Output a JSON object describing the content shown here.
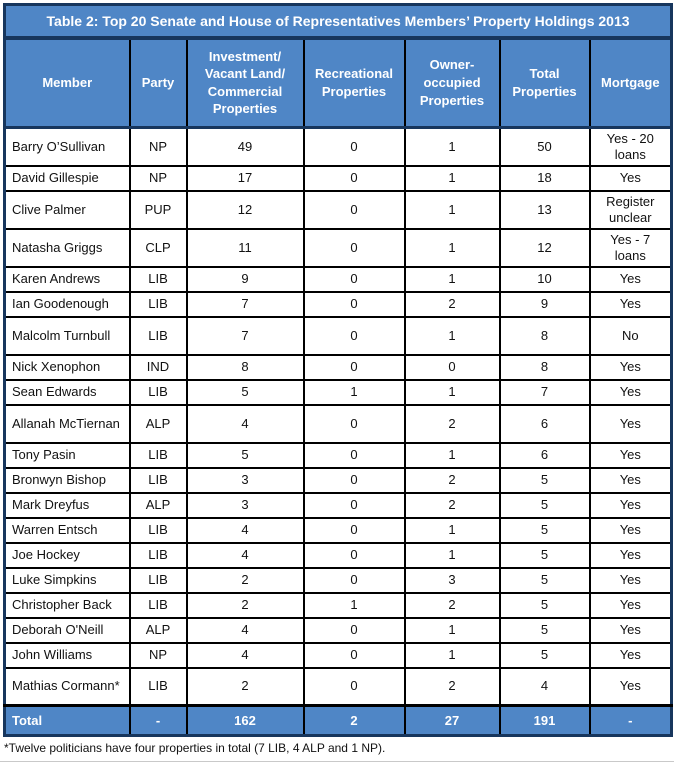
{
  "colors": {
    "accent_blue": "#4F86C6",
    "border_navy": "#17365D",
    "grid_black": "#000000",
    "header_text": "#FFFFFF",
    "body_text": "#111111"
  },
  "table": {
    "title": "Table 2: Top 20 Senate and House of Representatives Members’ Property Holdings 2013",
    "columns": [
      "Member",
      "Party",
      "Investment/ Vacant Land/ Commercial Properties",
      "Recreational Properties",
      "Owner-occupied Properties",
      "Total Properties",
      "Mortgage"
    ],
    "rows": [
      {
        "member": "Barry O’Sullivan",
        "party": "NP",
        "investment": 49,
        "recreational": 0,
        "owner_occupied": 1,
        "total": 50,
        "mortgage": "Yes - 20 loans"
      },
      {
        "member": "David Gillespie",
        "party": "NP",
        "investment": 17,
        "recreational": 0,
        "owner_occupied": 1,
        "total": 18,
        "mortgage": "Yes"
      },
      {
        "member": "Clive Palmer",
        "party": "PUP",
        "investment": 12,
        "recreational": 0,
        "owner_occupied": 1,
        "total": 13,
        "mortgage": "Register unclear"
      },
      {
        "member": "Natasha Griggs",
        "party": "CLP",
        "investment": 11,
        "recreational": 0,
        "owner_occupied": 1,
        "total": 12,
        "mortgage": "Yes - 7 loans"
      },
      {
        "member": "Karen Andrews",
        "party": "LIB",
        "investment": 9,
        "recreational": 0,
        "owner_occupied": 1,
        "total": 10,
        "mortgage": "Yes"
      },
      {
        "member": "Ian Goodenough",
        "party": "LIB",
        "investment": 7,
        "recreational": 0,
        "owner_occupied": 2,
        "total": 9,
        "mortgage": "Yes"
      },
      {
        "member": "Malcolm Turnbull",
        "party": "LIB",
        "investment": 7,
        "recreational": 0,
        "owner_occupied": 1,
        "total": 8,
        "mortgage": "No"
      },
      {
        "member": "Nick Xenophon",
        "party": "IND",
        "investment": 8,
        "recreational": 0,
        "owner_occupied": 0,
        "total": 8,
        "mortgage": "Yes"
      },
      {
        "member": "Sean Edwards",
        "party": "LIB",
        "investment": 5,
        "recreational": 1,
        "owner_occupied": 1,
        "total": 7,
        "mortgage": "Yes"
      },
      {
        "member": "Allanah McTiernan",
        "party": "ALP",
        "investment": 4,
        "recreational": 0,
        "owner_occupied": 2,
        "total": 6,
        "mortgage": "Yes"
      },
      {
        "member": "Tony Pasin",
        "party": "LIB",
        "investment": 5,
        "recreational": 0,
        "owner_occupied": 1,
        "total": 6,
        "mortgage": "Yes"
      },
      {
        "member": "Bronwyn Bishop",
        "party": "LIB",
        "investment": 3,
        "recreational": 0,
        "owner_occupied": 2,
        "total": 5,
        "mortgage": "Yes"
      },
      {
        "member": "Mark Dreyfus",
        "party": "ALP",
        "investment": 3,
        "recreational": 0,
        "owner_occupied": 2,
        "total": 5,
        "mortgage": "Yes"
      },
      {
        "member": "Warren Entsch",
        "party": "LIB",
        "investment": 4,
        "recreational": 0,
        "owner_occupied": 1,
        "total": 5,
        "mortgage": "Yes"
      },
      {
        "member": "Joe Hockey",
        "party": "LIB",
        "investment": 4,
        "recreational": 0,
        "owner_occupied": 1,
        "total": 5,
        "mortgage": "Yes"
      },
      {
        "member": "Luke Simpkins",
        "party": "LIB",
        "investment": 2,
        "recreational": 0,
        "owner_occupied": 3,
        "total": 5,
        "mortgage": "Yes"
      },
      {
        "member": "Christopher Back",
        "party": "LIB",
        "investment": 2,
        "recreational": 1,
        "owner_occupied": 2,
        "total": 5,
        "mortgage": "Yes"
      },
      {
        "member": "Deborah O'Neill",
        "party": "ALP",
        "investment": 4,
        "recreational": 0,
        "owner_occupied": 1,
        "total": 5,
        "mortgage": "Yes"
      },
      {
        "member": "John Williams",
        "party": "NP",
        "investment": 4,
        "recreational": 0,
        "owner_occupied": 1,
        "total": 5,
        "mortgage": "Yes"
      },
      {
        "member": "Mathias Cormann*",
        "party": "LIB",
        "investment": 2,
        "recreational": 0,
        "owner_occupied": 2,
        "total": 4,
        "mortgage": "Yes"
      }
    ],
    "total_row": {
      "member": "Total",
      "party": "-",
      "investment": 162,
      "recreational": 2,
      "owner_occupied": 27,
      "total": 191,
      "mortgage": "-"
    }
  },
  "footnote": "*Twelve politicians have four properties in total (7 LIB, 4 ALP and 1 NP)."
}
